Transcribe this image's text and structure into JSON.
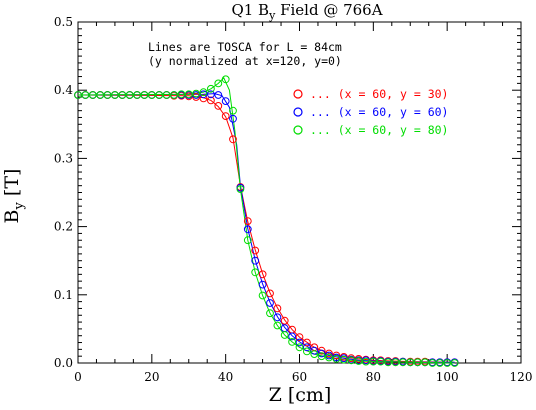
{
  "chart_data": {
    "type": "scatter",
    "title_main": "Q1 B",
    "title_sub": "y",
    "title_rest": " Field @ 766A",
    "xlabel": "Z [cm]",
    "ylabel_main": "B",
    "ylabel_sub": "y",
    "ylabel_rest": " [T]",
    "xlim": [
      0,
      120
    ],
    "ylim": [
      0,
      0.5
    ],
    "xticks": [
      "0",
      "20",
      "40",
      "60",
      "80",
      "100",
      "120"
    ],
    "yticks": [
      "0.0",
      "0.1",
      "0.2",
      "0.3",
      "0.4",
      "0.5"
    ],
    "annotations": [
      "Lines are TOSCA for L = 84cm",
      "(y normalized at x=120, y=0)"
    ],
    "series": [
      {
        "name": "... (x = 60, y = 30)",
        "color": "#ff0000",
        "marker": "circle",
        "points": [
          [
            0,
            0.393
          ],
          [
            2,
            0.393
          ],
          [
            4,
            0.393
          ],
          [
            6,
            0.393
          ],
          [
            8,
            0.393
          ],
          [
            10,
            0.393
          ],
          [
            12,
            0.393
          ],
          [
            14,
            0.393
          ],
          [
            16,
            0.393
          ],
          [
            18,
            0.393
          ],
          [
            20,
            0.393
          ],
          [
            22,
            0.393
          ],
          [
            24,
            0.393
          ],
          [
            26,
            0.392
          ],
          [
            28,
            0.392
          ],
          [
            30,
            0.391
          ],
          [
            32,
            0.39
          ],
          [
            34,
            0.388
          ],
          [
            36,
            0.385
          ],
          [
            38,
            0.377
          ],
          [
            40,
            0.362
          ],
          [
            42,
            0.328
          ],
          [
            44,
            0.258
          ],
          [
            46,
            0.208
          ],
          [
            48,
            0.165
          ],
          [
            50,
            0.13
          ],
          [
            52,
            0.102
          ],
          [
            54,
            0.08
          ],
          [
            56,
            0.062
          ],
          [
            58,
            0.049
          ],
          [
            60,
            0.038
          ],
          [
            62,
            0.03
          ],
          [
            64,
            0.023
          ],
          [
            66,
            0.018
          ],
          [
            68,
            0.014
          ],
          [
            70,
            0.011
          ],
          [
            72,
            0.009
          ],
          [
            74,
            0.007
          ],
          [
            76,
            0.006
          ],
          [
            78,
            0.005
          ],
          [
            80,
            0.004
          ],
          [
            82,
            0.004
          ],
          [
            84,
            0.003
          ],
          [
            86,
            0.003
          ],
          [
            88,
            0.002
          ],
          [
            90,
            0.002
          ],
          [
            92,
            0.002
          ],
          [
            94,
            0.002
          ],
          [
            96,
            0.001
          ],
          [
            98,
            0.001
          ],
          [
            100,
            0.001
          ],
          [
            102,
            0.001
          ]
        ],
        "line": [
          [
            0,
            0.393
          ],
          [
            30,
            0.392
          ],
          [
            34,
            0.389
          ],
          [
            36,
            0.385
          ],
          [
            38,
            0.376
          ],
          [
            40,
            0.361
          ],
          [
            42,
            0.33
          ],
          [
            44,
            0.26
          ],
          [
            46,
            0.207
          ],
          [
            48,
            0.166
          ],
          [
            50,
            0.131
          ],
          [
            52,
            0.103
          ],
          [
            54,
            0.081
          ],
          [
            56,
            0.063
          ],
          [
            58,
            0.049
          ],
          [
            60,
            0.038
          ],
          [
            64,
            0.023
          ],
          [
            68,
            0.014
          ],
          [
            72,
            0.009
          ],
          [
            76,
            0.006
          ],
          [
            80,
            0.004
          ],
          [
            90,
            0.002
          ],
          [
            102,
            0.001
          ]
        ]
      },
      {
        "name": "... (x = 60, y = 60)",
        "color": "#0000ff",
        "marker": "circle",
        "points": [
          [
            0,
            0.393
          ],
          [
            2,
            0.393
          ],
          [
            4,
            0.393
          ],
          [
            6,
            0.393
          ],
          [
            8,
            0.393
          ],
          [
            10,
            0.393
          ],
          [
            12,
            0.393
          ],
          [
            14,
            0.393
          ],
          [
            16,
            0.393
          ],
          [
            18,
            0.393
          ],
          [
            20,
            0.393
          ],
          [
            22,
            0.393
          ],
          [
            24,
            0.393
          ],
          [
            26,
            0.393
          ],
          [
            28,
            0.393
          ],
          [
            30,
            0.393
          ],
          [
            32,
            0.393
          ],
          [
            34,
            0.394
          ],
          [
            36,
            0.394
          ],
          [
            38,
            0.393
          ],
          [
            40,
            0.384
          ],
          [
            42,
            0.358
          ],
          [
            44,
            0.257
          ],
          [
            46,
            0.196
          ],
          [
            48,
            0.15
          ],
          [
            50,
            0.115
          ],
          [
            52,
            0.088
          ],
          [
            54,
            0.067
          ],
          [
            56,
            0.051
          ],
          [
            58,
            0.039
          ],
          [
            60,
            0.03
          ],
          [
            62,
            0.023
          ],
          [
            64,
            0.018
          ],
          [
            66,
            0.014
          ],
          [
            68,
            0.011
          ],
          [
            70,
            0.008
          ],
          [
            72,
            0.007
          ],
          [
            74,
            0.005
          ],
          [
            76,
            0.004
          ],
          [
            78,
            0.004
          ],
          [
            80,
            0.003
          ],
          [
            82,
            0.003
          ],
          [
            84,
            0.002
          ],
          [
            86,
            0.002
          ],
          [
            88,
            0.002
          ],
          [
            90,
            0.001
          ],
          [
            92,
            0.001
          ],
          [
            94,
            0.001
          ],
          [
            96,
            0.001
          ],
          [
            98,
            0.001
          ],
          [
            100,
            0.001
          ],
          [
            102,
            0.001
          ]
        ],
        "line": [
          [
            0,
            0.393
          ],
          [
            34,
            0.394
          ],
          [
            37,
            0.395
          ],
          [
            39,
            0.392
          ],
          [
            41,
            0.375
          ],
          [
            43,
            0.32
          ],
          [
            44,
            0.26
          ],
          [
            46,
            0.197
          ],
          [
            48,
            0.151
          ],
          [
            50,
            0.116
          ],
          [
            52,
            0.089
          ],
          [
            54,
            0.068
          ],
          [
            56,
            0.052
          ],
          [
            58,
            0.04
          ],
          [
            60,
            0.031
          ],
          [
            64,
            0.018
          ],
          [
            68,
            0.011
          ],
          [
            72,
            0.007
          ],
          [
            76,
            0.004
          ],
          [
            80,
            0.003
          ],
          [
            90,
            0.001
          ],
          [
            102,
            0.001
          ]
        ]
      },
      {
        "name": "... (x = 60, y = 80)",
        "color": "#00dd00",
        "marker": "circle",
        "points": [
          [
            0,
            0.393
          ],
          [
            2,
            0.393
          ],
          [
            4,
            0.393
          ],
          [
            6,
            0.393
          ],
          [
            8,
            0.393
          ],
          [
            10,
            0.393
          ],
          [
            12,
            0.393
          ],
          [
            14,
            0.393
          ],
          [
            16,
            0.393
          ],
          [
            18,
            0.393
          ],
          [
            20,
            0.393
          ],
          [
            22,
            0.393
          ],
          [
            24,
            0.393
          ],
          [
            26,
            0.393
          ],
          [
            28,
            0.394
          ],
          [
            30,
            0.394
          ],
          [
            32,
            0.395
          ],
          [
            34,
            0.397
          ],
          [
            36,
            0.402
          ],
          [
            38,
            0.41
          ],
          [
            40,
            0.416
          ],
          [
            42,
            0.37
          ],
          [
            44,
            0.255
          ],
          [
            46,
            0.18
          ],
          [
            48,
            0.133
          ],
          [
            50,
            0.099
          ],
          [
            52,
            0.073
          ],
          [
            54,
            0.055
          ],
          [
            56,
            0.041
          ],
          [
            58,
            0.031
          ],
          [
            60,
            0.023
          ],
          [
            62,
            0.017
          ],
          [
            64,
            0.013
          ],
          [
            66,
            0.01
          ],
          [
            68,
            0.008
          ],
          [
            70,
            0.006
          ],
          [
            72,
            0.005
          ],
          [
            74,
            0.004
          ],
          [
            76,
            0.003
          ],
          [
            78,
            0.002
          ],
          [
            80,
            0.002
          ],
          [
            82,
            0.002
          ],
          [
            84,
            0.001
          ],
          [
            86,
            0.001
          ],
          [
            88,
            0.001
          ],
          [
            90,
            0.001
          ],
          [
            92,
            0.001
          ],
          [
            94,
            0.001
          ],
          [
            96,
            0.0
          ],
          [
            98,
            0.0
          ],
          [
            100,
            0.0
          ],
          [
            102,
            0.0
          ]
        ],
        "line": [
          [
            0,
            0.393
          ],
          [
            30,
            0.394
          ],
          [
            34,
            0.397
          ],
          [
            36,
            0.402
          ],
          [
            38,
            0.41
          ],
          [
            39.5,
            0.418
          ],
          [
            41,
            0.4
          ],
          [
            42.5,
            0.34
          ],
          [
            44,
            0.255
          ],
          [
            46,
            0.18
          ],
          [
            48,
            0.133
          ],
          [
            50,
            0.099
          ],
          [
            52,
            0.073
          ],
          [
            54,
            0.055
          ],
          [
            56,
            0.041
          ],
          [
            58,
            0.031
          ],
          [
            60,
            0.023
          ],
          [
            64,
            0.013
          ],
          [
            68,
            0.008
          ],
          [
            72,
            0.005
          ],
          [
            76,
            0.003
          ],
          [
            80,
            0.002
          ],
          [
            90,
            0.001
          ],
          [
            102,
            0.0
          ]
        ]
      }
    ]
  }
}
